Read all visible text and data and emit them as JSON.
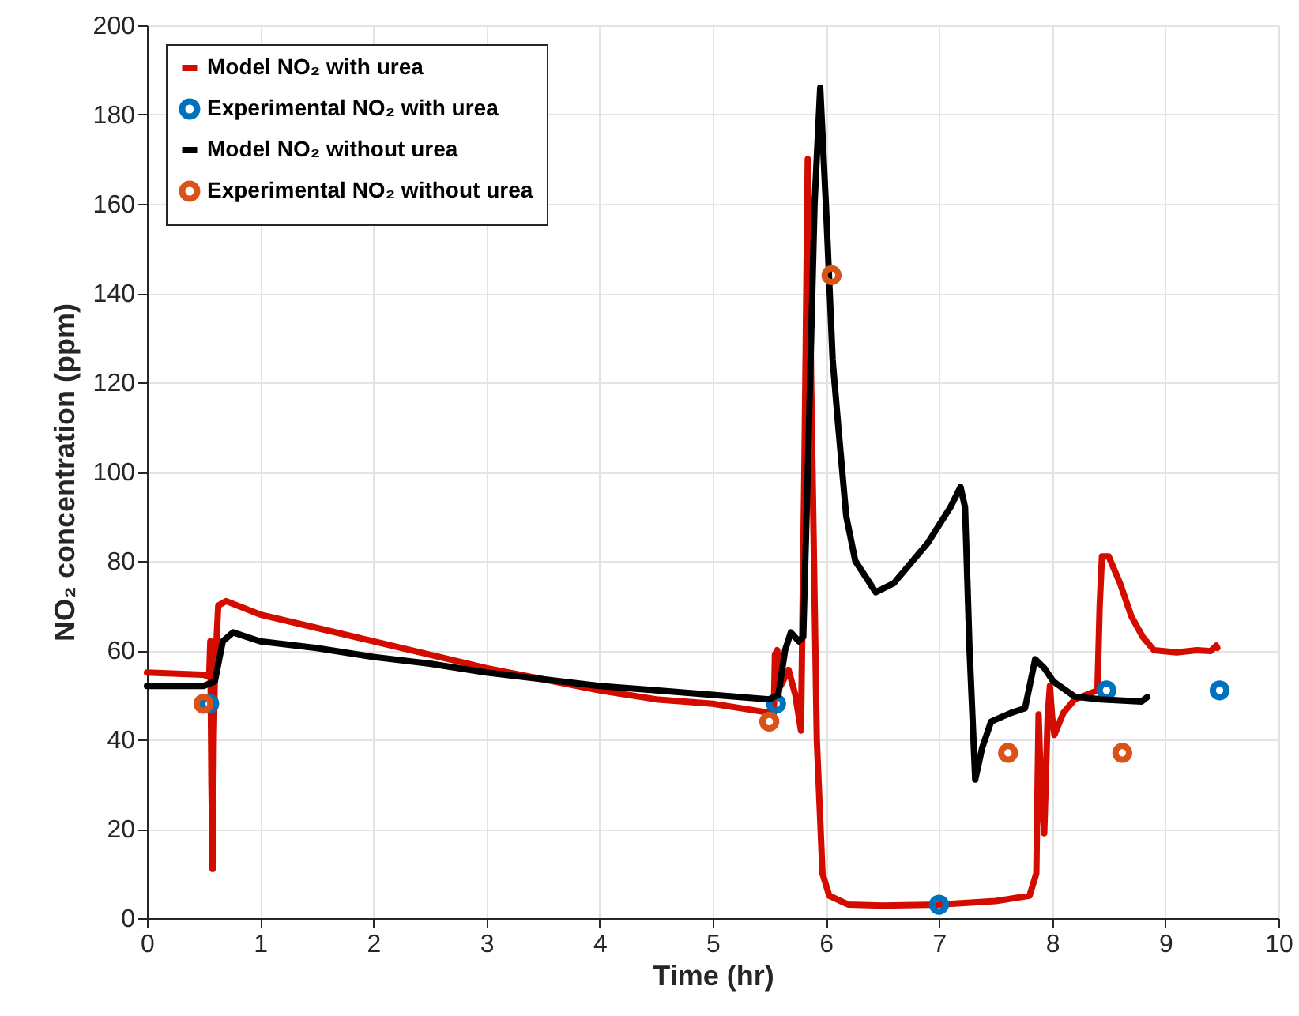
{
  "chart_data": {
    "type": "line",
    "xlabel": "Time (hr)",
    "ylabel": "NO₂ concentration (ppm)",
    "xlim": [
      0,
      10
    ],
    "xticks": [
      0,
      1,
      2,
      3,
      4,
      5,
      6,
      7,
      8,
      9,
      10
    ],
    "ylim": [
      0,
      200
    ],
    "yticks": [
      0,
      20,
      40,
      60,
      80,
      100,
      120,
      140,
      160,
      180,
      200
    ],
    "grid": true,
    "legend": "top left",
    "series": [
      {
        "name": "Model NO₂ with urea",
        "color": "#d40c00",
        "type": "line",
        "x": [
          0,
          0.5,
          0.55,
          0.56,
          0.57,
          0.58,
          0.59,
          0.6,
          0.63,
          0.7,
          1,
          1.5,
          2,
          2.5,
          3,
          3.5,
          4,
          4.5,
          5,
          5.5,
          5.54,
          5.55,
          5.57,
          5.6,
          5.67,
          5.73,
          5.78,
          5.81,
          5.84,
          5.87,
          5.92,
          5.97,
          6.03,
          6.2,
          6.5,
          7,
          7.5,
          7.8,
          7.86,
          7.88,
          7.9,
          7.93,
          7.96,
          7.98,
          8.0,
          8.02,
          8.1,
          8.2,
          8.4,
          8.42,
          8.44,
          8.5,
          8.6,
          8.7,
          8.8,
          8.9,
          9.1,
          9.28,
          9.4,
          9.45,
          9.46
        ],
        "values": [
          55,
          54.5,
          54,
          62,
          30,
          11,
          40,
          55,
          70,
          71,
          68,
          65,
          62,
          59,
          56,
          53.5,
          51,
          49,
          48,
          46,
          46,
          59,
          60,
          52,
          55.6,
          50,
          42,
          100,
          170,
          120,
          40,
          10,
          5,
          3,
          2.8,
          3,
          3.8,
          5,
          10,
          45.6,
          30,
          19,
          45,
          52,
          45,
          41,
          46,
          49,
          51,
          70,
          81,
          81,
          75,
          67.6,
          63,
          60,
          59.5,
          60,
          59.8,
          61,
          60.5
        ]
      },
      {
        "name": "Experimental NO₂ with urea",
        "color": "#0072bd",
        "type": "scatter",
        "x": [
          0.55,
          5.56,
          7.0,
          8.48,
          9.48
        ],
        "values": [
          48,
          48,
          3,
          51,
          51
        ]
      },
      {
        "name": "Model NO₂ without urea",
        "color": "#000000",
        "type": "line",
        "x": [
          0,
          0.5,
          0.6,
          0.67,
          0.76,
          1,
          1.5,
          2,
          2.5,
          3,
          3.5,
          4,
          4.5,
          5,
          5.5,
          5.58,
          5.64,
          5.69,
          5.76,
          5.8,
          5.84,
          5.9,
          5.95,
          6.0,
          6.06,
          6.11,
          6.18,
          6.26,
          6.44,
          6.6,
          6.9,
          7.1,
          7.19,
          7.23,
          7.27,
          7.32,
          7.38,
          7.46,
          7.64,
          7.76,
          7.85,
          7.93,
          8.01,
          8.2,
          8.43,
          8.79,
          8.84
        ],
        "values": [
          52,
          52,
          53,
          62,
          64,
          62,
          60.5,
          58.5,
          57,
          55,
          53.5,
          52,
          51,
          50,
          49,
          50,
          60,
          64,
          62,
          63,
          100,
          160,
          186,
          160,
          125,
          110,
          90,
          80,
          73,
          75,
          84,
          92,
          96.6,
          92,
          60,
          31,
          38,
          44,
          46,
          47,
          58,
          56,
          53,
          49.6,
          49,
          48.5,
          49.5
        ]
      },
      {
        "name": "Experimental NO₂ without urea",
        "color": "#d95319",
        "type": "scatter",
        "x": [
          0.5,
          5.5,
          6.05,
          7.61,
          8.62
        ],
        "values": [
          48,
          44,
          144,
          37,
          37
        ]
      }
    ]
  }
}
